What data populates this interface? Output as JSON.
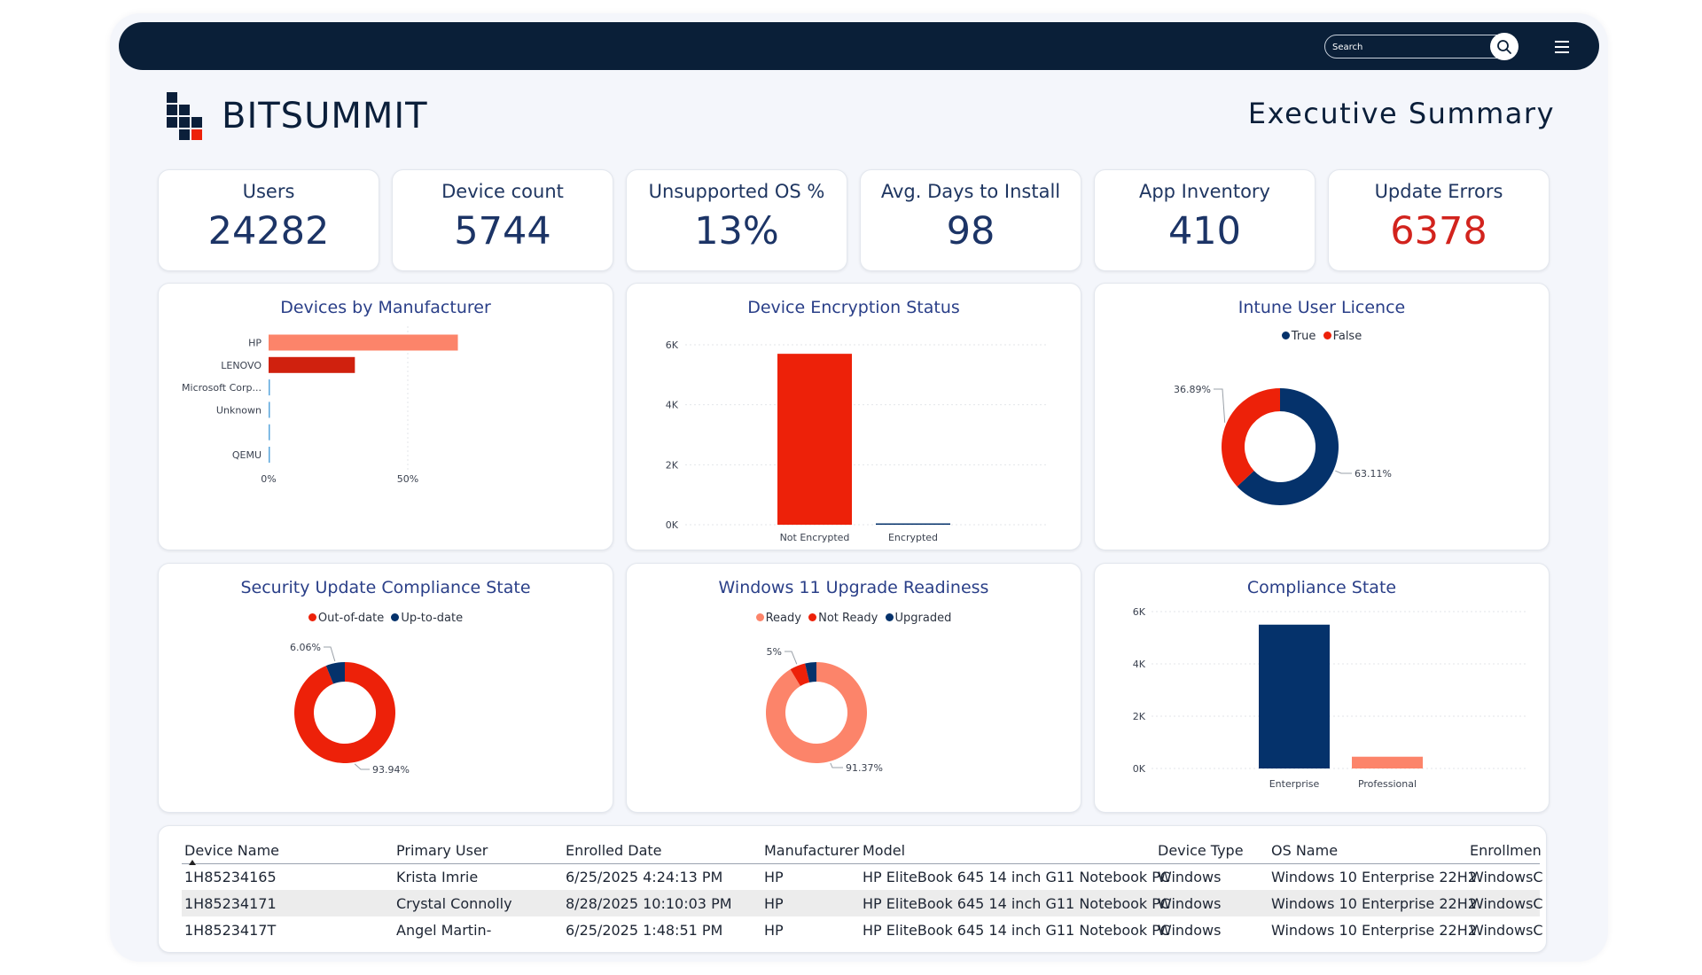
{
  "header": {
    "search_placeholder": "Search",
    "brand": "BITSUMMIT",
    "page_title": "Executive Summary"
  },
  "kpis": [
    {
      "label": "Users",
      "value": "24282"
    },
    {
      "label": "Device count",
      "value": "5744"
    },
    {
      "label": "Unsupported OS %",
      "value": "13%"
    },
    {
      "label": "Avg. Days to Install",
      "value": "98"
    },
    {
      "label": "App Inventory",
      "value": "410"
    },
    {
      "label": "Update Errors",
      "value": "6378"
    }
  ],
  "colors": {
    "navy": "#05326b",
    "red": "#ed2109",
    "salmon": "#fc846a",
    "darkred": "#d0210e",
    "light_blue": "#5aa6dc",
    "kpi_error": "#d2231d"
  },
  "charts": {
    "manufacturer": {
      "title": "Devices by Manufacturer",
      "chart_data": {
        "type": "bar",
        "orientation": "horizontal",
        "categories": [
          "HP",
          "LENOVO",
          "Microsoft Corp...",
          "Unknown",
          "",
          "QEMU"
        ],
        "values": [
          68,
          31,
          0.4,
          0.3,
          0.2,
          0.2
        ],
        "xticks": [
          "0%",
          "50%"
        ],
        "xlim": [
          0,
          100
        ],
        "colors": [
          "#fc846a",
          "#d0210e",
          "#5aa6dc",
          "#5aa6dc",
          "#5aa6dc",
          "#5aa6dc"
        ],
        "grid": true
      }
    },
    "encryption": {
      "title": "Device Encryption Status",
      "chart_data": {
        "type": "bar",
        "categories": [
          "Not Encrypted",
          "Encrypted"
        ],
        "values": [
          5700,
          44
        ],
        "yticks": [
          "0K",
          "2K",
          "4K",
          "6K"
        ],
        "ylim": [
          0,
          6000
        ],
        "colors": [
          "#ed2109",
          "#05326b"
        ],
        "grid": true
      }
    },
    "licence": {
      "title": "Intune User Licence",
      "chart_data": {
        "type": "pie",
        "donut": true,
        "legend": [
          {
            "name": "True",
            "color": "#05326b"
          },
          {
            "name": "False",
            "color": "#ed2109"
          }
        ],
        "values": [
          63.11,
          36.89
        ],
        "labels": [
          "63.11%",
          "36.89%"
        ],
        "colors": [
          "#05326b",
          "#ed2109"
        ]
      }
    },
    "security": {
      "title": "Security Update Compliance State",
      "chart_data": {
        "type": "pie",
        "donut": true,
        "legend": [
          {
            "name": "Out-of-date",
            "color": "#ed2109"
          },
          {
            "name": "Up-to-date",
            "color": "#05326b"
          }
        ],
        "values": [
          93.94,
          6.06
        ],
        "labels": [
          "93.94%",
          "6.06%"
        ],
        "colors": [
          "#ed2109",
          "#05326b"
        ]
      }
    },
    "win11": {
      "title": "Windows 11 Upgrade Readiness",
      "chart_data": {
        "type": "pie",
        "donut": true,
        "legend": [
          {
            "name": "Ready",
            "color": "#fc846a"
          },
          {
            "name": "Not Ready",
            "color": "#ed2109"
          },
          {
            "name": "Upgraded",
            "color": "#05326b"
          }
        ],
        "values": [
          91.37,
          5,
          3.63
        ],
        "labels": [
          "91.37%",
          "5%",
          ""
        ],
        "colors": [
          "#fc846a",
          "#ed2109",
          "#05326b"
        ]
      }
    },
    "compliance": {
      "title": "Compliance State",
      "chart_data": {
        "type": "bar",
        "categories": [
          "Enterprise",
          "Professional"
        ],
        "values": [
          5500,
          450
        ],
        "yticks": [
          "0K",
          "2K",
          "4K",
          "6K"
        ],
        "ylim": [
          0,
          6000
        ],
        "colors": [
          "#05326b",
          "#fc846a"
        ],
        "grid": true
      }
    }
  },
  "table": {
    "columns": [
      "Device Name",
      "Primary User",
      "Enrolled Date",
      "Manufacturer",
      "Model",
      "Device Type",
      "OS Name",
      "Enrollmen"
    ],
    "rows": [
      [
        "1H85234165",
        "Krista Imrie",
        "6/25/2025 4:24:13 PM",
        "HP",
        "HP EliteBook 645 14 inch G11 Notebook PC",
        "Windows",
        "Windows 10 Enterprise 22H2",
        "WindowsC"
      ],
      [
        "1H85234171",
        "Crystal Connolly",
        "8/28/2025 10:10:03 PM",
        "HP",
        "HP EliteBook 645 14 inch G11 Notebook PC",
        "Windows",
        "Windows 10 Enterprise 22H2",
        "WindowsC"
      ],
      [
        "1H8523417T",
        "Angel Martin-",
        "6/25/2025 1:48:51 PM",
        "HP",
        "HP EliteBook 645 14 inch G11 Notebook PC",
        "Windows",
        "Windows 10 Enterprise 22H2",
        "WindowsC"
      ]
    ]
  }
}
